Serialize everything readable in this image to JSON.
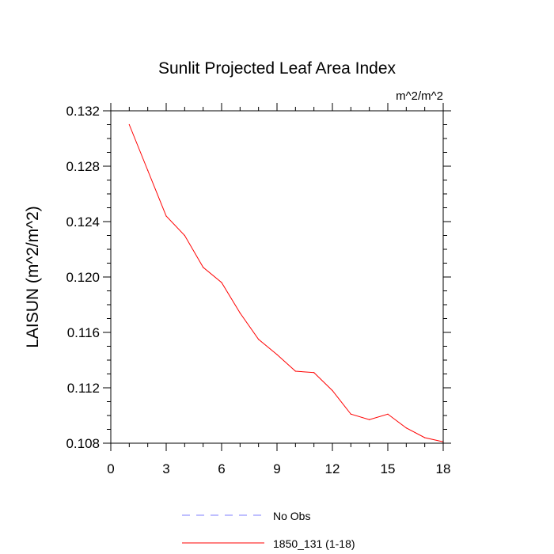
{
  "chart_data": {
    "type": "line",
    "title": "Sunlit Projected Leaf Area Index",
    "units_label": "m^2/m^2",
    "ylabel": "LAISUN  (m^2/m^2)",
    "xlabel": "",
    "xlim": [
      0,
      18
    ],
    "ylim": [
      0.108,
      0.132
    ],
    "x_ticks": [
      0,
      3,
      6,
      9,
      12,
      15,
      18
    ],
    "x_tick_labels": [
      "0",
      "3",
      "6",
      "9",
      "12",
      "15",
      "18"
    ],
    "y_ticks": [
      0.108,
      0.112,
      0.116,
      0.12,
      0.124,
      0.128,
      0.132
    ],
    "y_tick_labels": [
      "0.108",
      "0.112",
      "0.116",
      "0.120",
      "0.124",
      "0.128",
      "0.132"
    ],
    "grid": false,
    "legend_placement": "bottom",
    "series": [
      {
        "name": "No Obs",
        "color": "#7f7fff",
        "dash": "dashed",
        "x": [],
        "y": []
      },
      {
        "name": "1850_131 (1-18)",
        "color": "#ff0000",
        "dash": "solid",
        "x": [
          1,
          2,
          3,
          4,
          5,
          6,
          7,
          8,
          9,
          10,
          11,
          12,
          13,
          14,
          15,
          16,
          17,
          18
        ],
        "y": [
          0.131,
          0.1277,
          0.1244,
          0.123,
          0.1207,
          0.1196,
          0.1174,
          0.1155,
          0.1144,
          0.1132,
          0.1131,
          0.1118,
          0.1101,
          0.1097,
          0.1101,
          0.1091,
          0.1084,
          0.1081
        ]
      }
    ]
  }
}
